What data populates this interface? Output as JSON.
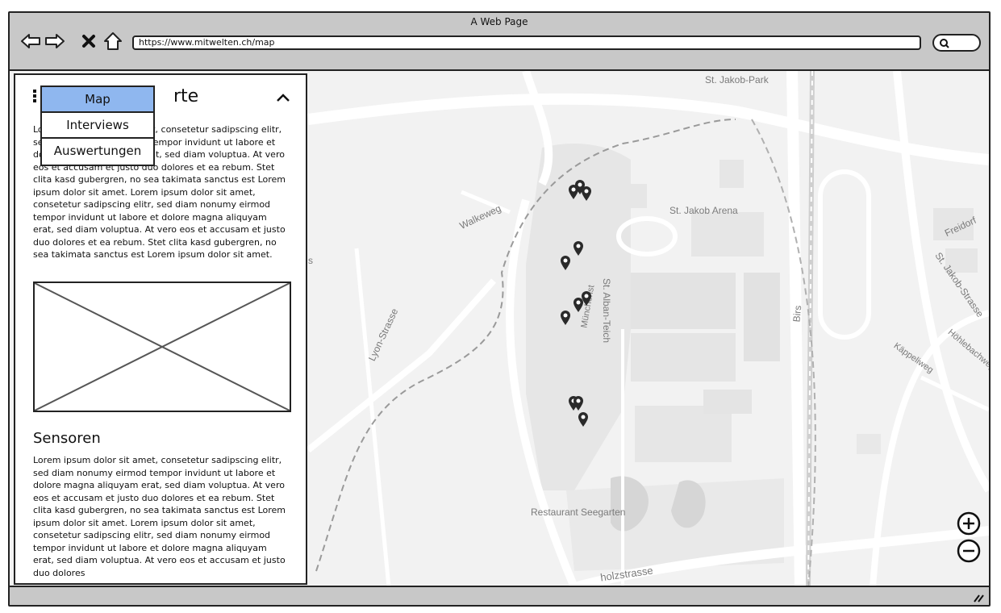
{
  "window": {
    "title": "A Web Page"
  },
  "address_bar": {
    "url": "https://www.mitwelten.ch/map"
  },
  "map": {
    "labels": {
      "st_jakob_park": "St. Jakob-Park",
      "st_jakob_arena": "St. Jakob Arena",
      "walkeweg": "Walkeweg",
      "st_alban_teich": "St. Alban-Teich",
      "lyon_strasse": "Lyon-Strasse",
      "birs": "Birs",
      "freidorf": "Freidorf",
      "st_jakob_strasse": "St. Jakob-Strasse",
      "kappeliweg": "Käppeliweg",
      "hohlebachweg": "Höhlebachweg",
      "restaurant_seegarten": "Restaurant Seegarten",
      "holzstrasse": "holzstrasse",
      "munchenstein": "Münchenst",
      "edge_s": "s"
    },
    "zoom_in_icon": "plus-circle-icon",
    "zoom_out_icon": "minus-circle-icon"
  },
  "panel": {
    "title": "rte",
    "intro_text": "Lorem ipsum dolor sit amet, consetetur sadipscing elitr, sed diam nonumy eirmod tempor invidunt ut labore et dolore magna aliquyam erat, sed diam voluptua. At vero eos et accusam et justo duo dolores et ea rebum. Stet clita kasd gubergren, no sea takimata sanctus est Lorem ipsum dolor sit amet. Lorem ipsum dolor sit amet, consetetur sadipscing elitr, sed diam nonumy eirmod tempor invidunt ut labore et dolore magna aliquyam erat, sed diam voluptua. At vero eos et accusam et justo duo dolores et ea rebum. Stet clita kasd gubergren, no sea takimata sanctus est Lorem ipsum dolor sit amet.",
    "section_heading": "Sensoren",
    "section_text": "Lorem ipsum dolor sit amet, consetetur sadipscing elitr, sed diam nonumy eirmod tempor invidunt ut labore et dolore magna aliquyam erat, sed diam voluptua. At vero eos et accusam et justo duo dolores et ea rebum. Stet clita kasd gubergren, no sea takimata sanctus est Lorem ipsum dolor sit amet. Lorem ipsum dolor sit amet, consetetur sadipscing elitr, sed diam nonumy eirmod tempor invidunt ut labore et dolore magna aliquyam erat, sed diam voluptua. At vero eos et accusam et justo duo dolores"
  },
  "menu": {
    "items": [
      {
        "label": "Map",
        "active": true
      },
      {
        "label": "Interviews",
        "active": false
      },
      {
        "label": "Auswertungen",
        "active": false
      }
    ]
  },
  "colors": {
    "active_menu": "#8fb7ef",
    "chrome": "#c8c8c8",
    "map_bg": "#f2f2f2"
  }
}
